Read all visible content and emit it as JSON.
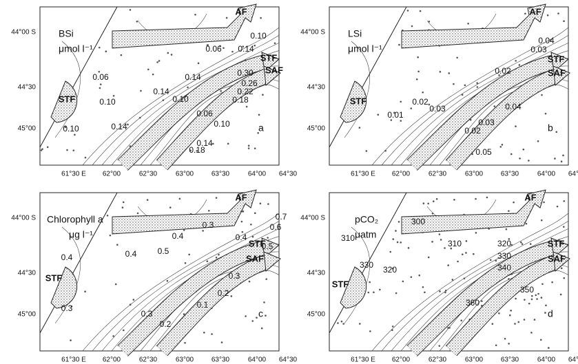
{
  "axes": {
    "xticks": [
      "61°30 E",
      "62°00",
      "62°30",
      "63°00",
      "63°30",
      "64°00",
      "64°30"
    ],
    "yticks": [
      "44°00 S",
      "44°30",
      "45°00"
    ]
  },
  "panels": [
    {
      "title": "BSi",
      "unit": "μmol l⁻¹",
      "letter": "a",
      "fronts": [
        "AF",
        "STF",
        "SAF",
        "STF"
      ],
      "contour_labels": [
        "0.10",
        "0.06",
        "0.14",
        "0.06",
        "0.14",
        "0.30",
        "0.26",
        "0.22",
        "0.18",
        "0.14",
        "0.10",
        "0.10",
        "0.06",
        "0.10",
        "0.14",
        "0.10",
        "0.14",
        "0.18"
      ]
    },
    {
      "title": "LSi",
      "unit": "μmol l⁻¹",
      "letter": "b",
      "fronts": [
        "AF",
        "STF",
        "SAF",
        "STF"
      ],
      "contour_labels": [
        "0.04",
        "0.03",
        "0.02",
        "0.02",
        "0.03",
        "0.01",
        "0.04",
        "0.03",
        "0.02",
        "0.05"
      ]
    },
    {
      "title": "Chlorophyll a",
      "unit": "μg l⁻¹",
      "letter": "c",
      "fronts": [
        "AF",
        "STF",
        "SAF",
        "STF"
      ],
      "contour_labels": [
        "0.7",
        "0.3",
        "0.6",
        "0.4",
        "0.4",
        "0.5",
        "0.5",
        "0.4",
        "0.4",
        "0.3",
        "0.2",
        "0.1",
        "0.3",
        "0.2",
        "0.3"
      ]
    },
    {
      "title": "pCO₂",
      "unit": "μatm",
      "letter": "d",
      "fronts": [
        "AF",
        "STF",
        "SAF",
        "STF"
      ],
      "contour_labels": [
        "300",
        "310",
        "310",
        "320",
        "330",
        "340",
        "330",
        "320",
        "350",
        "360"
      ]
    }
  ]
}
